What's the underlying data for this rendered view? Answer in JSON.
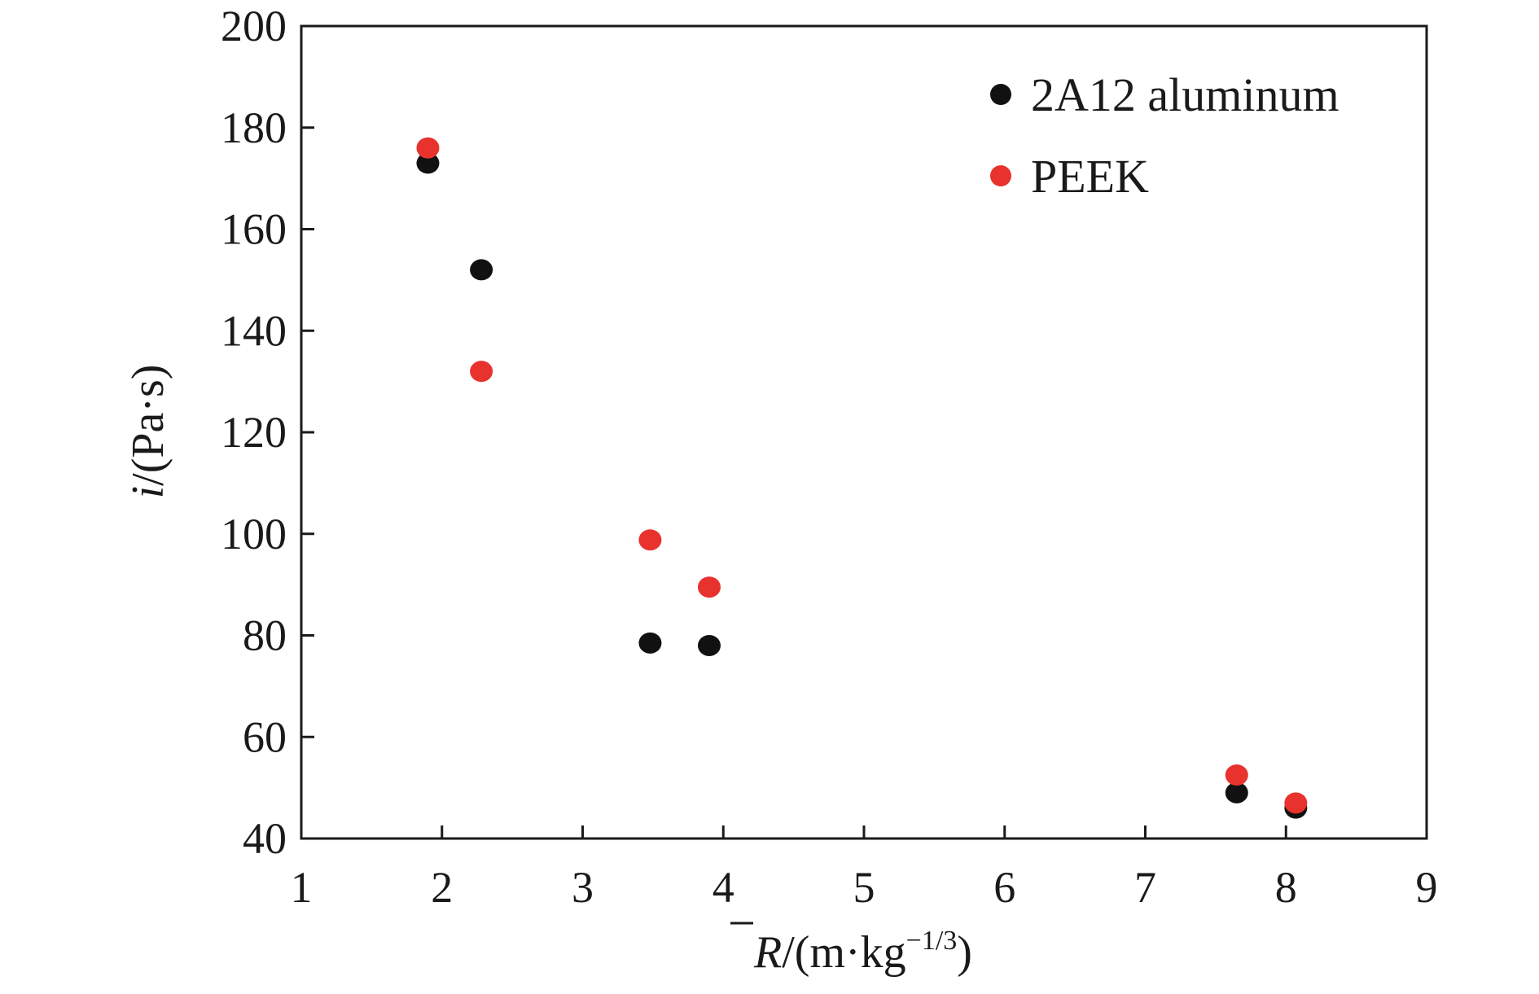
{
  "chart_data": {
    "type": "scatter",
    "title": "",
    "xlabel": {
      "symbol": "R",
      "open": "/(m·kg",
      "exponent": "−1/3",
      "close": ")"
    },
    "ylabel": {
      "symbol": "i",
      "rest": "/(Pa·s)"
    },
    "xlim": [
      1,
      9
    ],
    "ylim": [
      40,
      200
    ],
    "xticks": [
      1,
      2,
      3,
      4,
      5,
      6,
      7,
      8,
      9
    ],
    "yticks": [
      40,
      60,
      80,
      100,
      120,
      140,
      160,
      180,
      200
    ],
    "grid": false,
    "legend_position": "top-right",
    "series": [
      {
        "name": "2A12 aluminum",
        "color": "#111111",
        "points": [
          {
            "x": 1.9,
            "y": 173
          },
          {
            "x": 2.28,
            "y": 152
          },
          {
            "x": 3.48,
            "y": 78.5
          },
          {
            "x": 3.9,
            "y": 78
          },
          {
            "x": 7.65,
            "y": 49
          },
          {
            "x": 8.07,
            "y": 46
          }
        ]
      },
      {
        "name": "PEEK",
        "color": "#e8322e",
        "points": [
          {
            "x": 1.9,
            "y": 176
          },
          {
            "x": 2.28,
            "y": 132
          },
          {
            "x": 3.48,
            "y": 98.8
          },
          {
            "x": 3.9,
            "y": 89.5
          },
          {
            "x": 7.65,
            "y": 52.5
          },
          {
            "x": 8.07,
            "y": 47
          }
        ]
      }
    ]
  }
}
